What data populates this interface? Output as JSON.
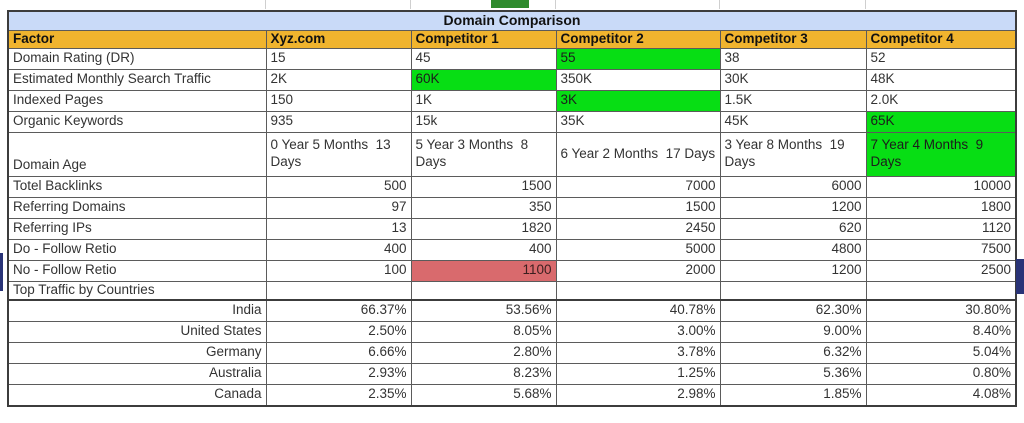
{
  "title": "Domain Comparison",
  "columns": [
    "Factor",
    "Xyz.com",
    "Competitor 1",
    "Competitor 2",
    "Competitor 3",
    "Competitor 4"
  ],
  "rows": [
    {
      "factor": "Domain Rating (DR)",
      "factorAlign": "left",
      "valueAlign": "left",
      "cells": [
        {
          "text": "15"
        },
        {
          "text": "45"
        },
        {
          "text": "55",
          "bg": "green"
        },
        {
          "text": "38"
        },
        {
          "text": "52"
        }
      ]
    },
    {
      "factor": "Estimated Monthly Search Traffic",
      "factorAlign": "left",
      "valueAlign": "left",
      "cells": [
        {
          "text": "2K"
        },
        {
          "text": "60K",
          "bg": "green"
        },
        {
          "text": "350K"
        },
        {
          "text": "30K"
        },
        {
          "text": "48K"
        }
      ]
    },
    {
      "factor": "Indexed Pages",
      "factorAlign": "left",
      "valueAlign": "left",
      "cells": [
        {
          "text": "150"
        },
        {
          "text": "1K"
        },
        {
          "text": "3K",
          "bg": "green"
        },
        {
          "text": "1.5K"
        },
        {
          "text": "2.0K"
        }
      ]
    },
    {
      "factor": "Organic Keywords",
      "factorAlign": "left",
      "valueAlign": "left",
      "cells": [
        {
          "text": "935"
        },
        {
          "text": "15k"
        },
        {
          "text": "35K"
        },
        {
          "text": "45K"
        },
        {
          "text": "65K",
          "bg": "green"
        }
      ]
    },
    {
      "factor": "Domain Age",
      "factorAlign": "left",
      "valueAlign": "left",
      "tall": true,
      "cells": [
        {
          "text": "0 Year 5 Months  13 Days"
        },
        {
          "text": "5 Year 3 Months  8 Days"
        },
        {
          "text": "6 Year 2 Months  17 Days"
        },
        {
          "text": "3 Year 8 Months  19 Days"
        },
        {
          "text": "7 Year 4 Months  9 Days",
          "bg": "green"
        }
      ]
    },
    {
      "factor": "Totel Backlinks",
      "factorAlign": "left",
      "valueAlign": "right",
      "cells": [
        {
          "text": "500"
        },
        {
          "text": "1500"
        },
        {
          "text": "7000"
        },
        {
          "text": "6000"
        },
        {
          "text": "10000"
        }
      ]
    },
    {
      "factor": "Referring Domains",
      "factorAlign": "left",
      "valueAlign": "right",
      "cells": [
        {
          "text": "97"
        },
        {
          "text": "350"
        },
        {
          "text": "1500"
        },
        {
          "text": "1200"
        },
        {
          "text": "1800"
        }
      ]
    },
    {
      "factor": "Referring IPs",
      "factorAlign": "left",
      "valueAlign": "right",
      "cells": [
        {
          "text": "13"
        },
        {
          "text": "1820"
        },
        {
          "text": "2450"
        },
        {
          "text": "620"
        },
        {
          "text": "1120"
        }
      ]
    },
    {
      "factor": "Do - Follow Retio",
      "factorAlign": "left",
      "valueAlign": "right",
      "cells": [
        {
          "text": "400"
        },
        {
          "text": "400"
        },
        {
          "text": "5000"
        },
        {
          "text": "4800"
        },
        {
          "text": "7500"
        }
      ]
    },
    {
      "factor": "No - Follow Retio",
      "factorAlign": "left",
      "valueAlign": "right",
      "cells": [
        {
          "text": "100"
        },
        {
          "text": "1100",
          "bg": "red"
        },
        {
          "text": "2000"
        },
        {
          "text": "1200"
        },
        {
          "text": "2500"
        }
      ]
    },
    {
      "factor": "Top Traffic by Countries",
      "factorAlign": "left",
      "valueAlign": "right",
      "short": true,
      "section": true,
      "cells": [
        {
          "text": ""
        },
        {
          "text": ""
        },
        {
          "text": ""
        },
        {
          "text": ""
        },
        {
          "text": ""
        }
      ]
    },
    {
      "factor": "India",
      "factorAlign": "right",
      "valueAlign": "right",
      "cells": [
        {
          "text": "66.37%"
        },
        {
          "text": "53.56%"
        },
        {
          "text": "40.78%"
        },
        {
          "text": "62.30%"
        },
        {
          "text": "30.80%"
        }
      ]
    },
    {
      "factor": "United States",
      "factorAlign": "right",
      "valueAlign": "right",
      "cells": [
        {
          "text": "2.50%"
        },
        {
          "text": "8.05%"
        },
        {
          "text": "3.00%"
        },
        {
          "text": "9.00%"
        },
        {
          "text": "8.40%"
        }
      ]
    },
    {
      "factor": "Germany",
      "factorAlign": "right",
      "valueAlign": "right",
      "cells": [
        {
          "text": "6.66%"
        },
        {
          "text": "2.80%"
        },
        {
          "text": "3.78%"
        },
        {
          "text": "6.32%"
        },
        {
          "text": "5.04%"
        }
      ]
    },
    {
      "factor": "Australia",
      "factorAlign": "right",
      "valueAlign": "right",
      "cells": [
        {
          "text": "2.93%"
        },
        {
          "text": "8.23%"
        },
        {
          "text": "1.25%"
        },
        {
          "text": "5.36%"
        },
        {
          "text": "0.80%"
        }
      ]
    },
    {
      "factor": "Canada",
      "factorAlign": "right",
      "valueAlign": "right",
      "cells": [
        {
          "text": "2.35%"
        },
        {
          "text": "5.68%"
        },
        {
          "text": "2.98%"
        },
        {
          "text": "1.85%"
        },
        {
          "text": "4.08%"
        }
      ]
    }
  ],
  "colors": {
    "header_bg": "#f0b42e",
    "title_bg": "#c9daf8",
    "highlight_green": "#07de14",
    "highlight_red": "#d96a6d",
    "selection_blue": "#293377",
    "tab_green": "#2f8b2e"
  }
}
